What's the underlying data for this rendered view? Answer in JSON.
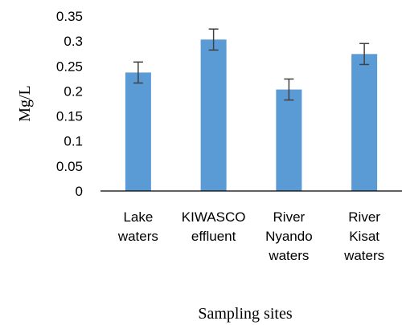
{
  "chart_data": {
    "type": "bar",
    "title": "",
    "categories": [
      [
        "Lake",
        "waters"
      ],
      [
        "KIWASCO",
        "effluent"
      ],
      [
        "River",
        "Nyando",
        "waters"
      ],
      [
        "River",
        "Kisat",
        "waters"
      ]
    ],
    "values": [
      0.237,
      0.303,
      0.203,
      0.274
    ],
    "error": [
      0.021,
      0.021,
      0.021,
      0.021
    ],
    "xlabel": "Sampling sites",
    "ylabel": "Mg/L",
    "ylim": [
      0,
      0.35
    ],
    "yticks": [
      0,
      0.05,
      0.1,
      0.15,
      0.2,
      0.25,
      0.3,
      0.35
    ],
    "ytick_labels": [
      "0",
      "0.05",
      "0.1",
      "0.15",
      "0.2",
      "0.25",
      "0.3",
      "0.35"
    ],
    "grid": false,
    "legend": "none",
    "colors": {
      "bar": "#5b9bd5",
      "error_bar": "#404040",
      "axis": "#000000"
    }
  }
}
